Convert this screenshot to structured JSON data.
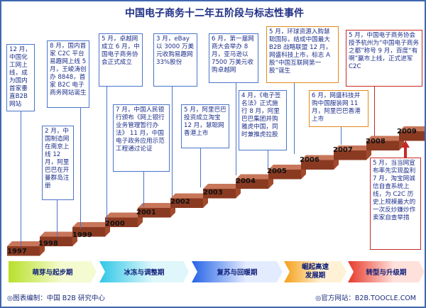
{
  "title": "中国电子商务十二年五阶段与标志性事件",
  "years": [
    "1997",
    "1998",
    "1999",
    "2000",
    "2001",
    "2002",
    "2003",
    "2004",
    "2005",
    "2006",
    "2007",
    "2008",
    "2009"
  ],
  "phases": [
    "萌芽与起步期",
    "冰冻与调整期",
    "复苏与回暖期",
    "崛起高速\n发展期",
    "转型与升级期"
  ],
  "events": {
    "e1997": "12 月，中国化工网上线，成为国内首家垂直B2B网站",
    "e1998": "2 月，中国制造网在南京上线\n12 月，阿里巴巴在开曼群岛注册",
    "e1999": "8 月，国内首家 C2C 平台易趣网上线\n5 月，王峻涛创办 8848，首家 B2C 电子商务网站诞生",
    "e2000": "5 月，卓越网成立\n6 月，中国电子商务协会正式成立",
    "e2001": "7 月，中国人民银行颁布《网上银行业务管理暂行办法》\n11 月，中国电子政务应用示范工程通过论证",
    "e2002": "3 月，eBay 以 3000 万美元收购易趣网 33%股份",
    "e2003": "5 月，阿里巴巴投资成立淘宝\n12 月，慧聪网香港上市",
    "e2004": "6 月，第一届网商大会举办\n8 月，亚马逊以 7500 万美元收购卓越网",
    "e2005": "4 月，《电子签名法》正式施行\n8 月，阿里巴巴集团并购雅虎中国，同时兼推虎拉股",
    "e2006": "5 月，环球资源入购慧聪国际，结成中国最大 B2B 战略联盟\n12 月，网盛科技上市，标志 A 股“中国互联网第一股”诞生",
    "e2007": "6 月，网盛科技并购中国服装网\n11 月，阿里巴巴香港上市",
    "e2008": "5 月，中国电子商务协会授予杭州为“中国电子商务之都”称号\n9 月，百度“有啊”赢市上线，正式进军 C2C",
    "e2009": "5 月，当当网宣布率先实现盈利\n7 月，淘宝网诚信自查系统上线，为 C2C 历史上规模最大的一次反炒嫌炒作卖家自查举措"
  },
  "footer_left": "◎图表编制：中国 B2B 研究中心",
  "footer_right": "◎官方网站：B2B.TOOCLE.COM"
}
